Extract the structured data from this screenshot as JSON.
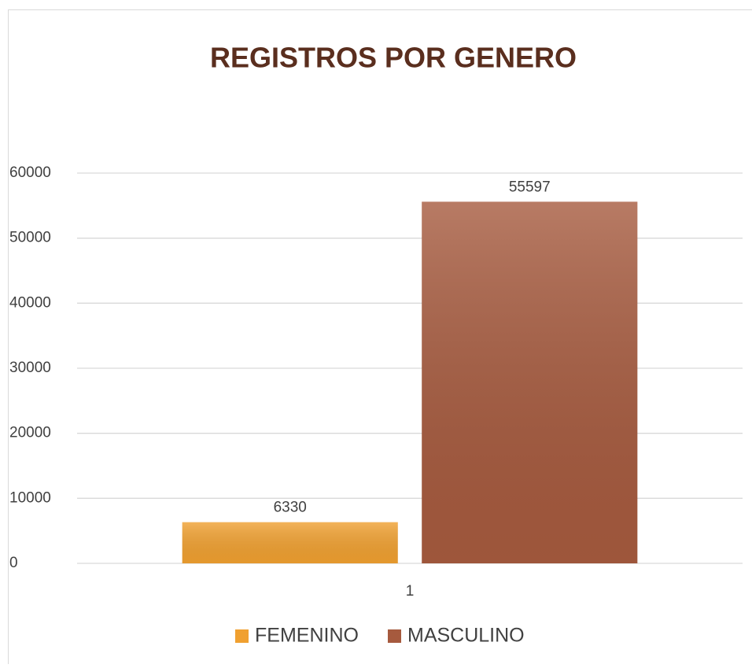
{
  "chart_data": {
    "type": "bar",
    "title": "REGISTROS POR GENERO",
    "categories": [
      "1"
    ],
    "series": [
      {
        "name": "FEMENINO",
        "color": "#f0a030",
        "values": [
          6330
        ]
      },
      {
        "name": "MASCULINO",
        "color": "#a65a3e",
        "values": [
          55597
        ]
      }
    ],
    "ylim": [
      0,
      60000
    ],
    "yticks": [
      0,
      10000,
      20000,
      30000,
      40000,
      50000,
      60000
    ],
    "grid": true,
    "legend": "bottom"
  }
}
